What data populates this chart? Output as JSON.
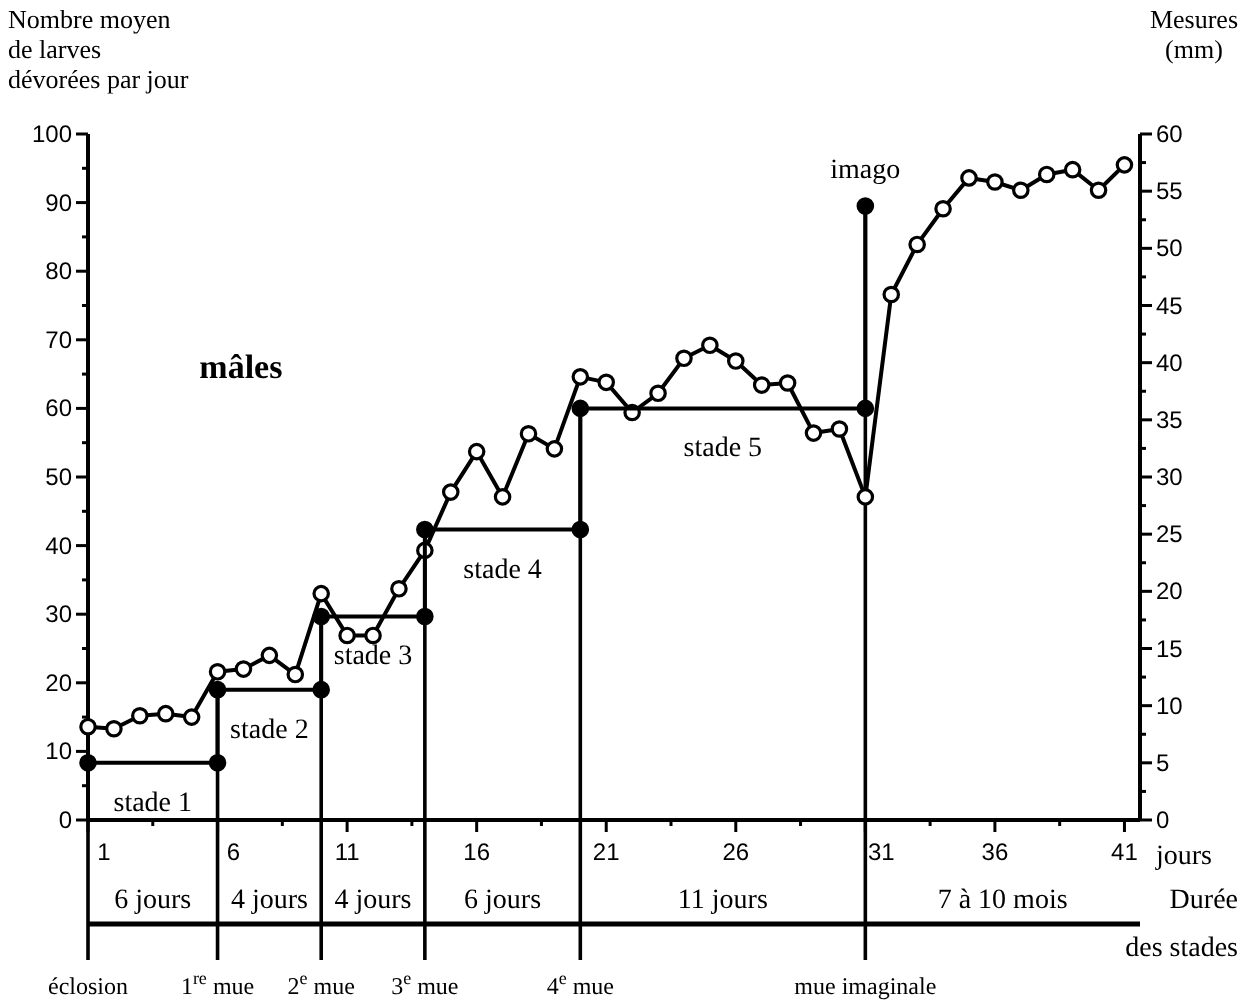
{
  "chart_data": {
    "type": "line",
    "ylabel": "Nombre moyen\nde larves\ndévorées par jour",
    "y2label": "Mesures\n(mm)",
    "xlabel": "jours",
    "xlim": [
      1,
      41.6
    ],
    "xticks": [
      1,
      {
        "value": 3.5,
        "label": null
      },
      6,
      {
        "value": 8.5,
        "label": null
      },
      11,
      {
        "value": 13.5,
        "label": null
      },
      16,
      {
        "value": 18.5,
        "label": null
      },
      21,
      {
        "value": 23.5,
        "label": null
      },
      26,
      {
        "value": 28.5,
        "label": null
      },
      31,
      {
        "value": 33.5,
        "label": null
      },
      36,
      {
        "value": 38.5,
        "label": null
      },
      41
    ],
    "ylim": [
      0,
      100
    ],
    "yticks": [
      0,
      {
        "value": 5,
        "label": null
      },
      10,
      {
        "value": 15,
        "label": null
      },
      20,
      {
        "value": 25,
        "label": null
      },
      30,
      {
        "value": 35,
        "label": null
      },
      40,
      {
        "value": 45,
        "label": null
      },
      50,
      {
        "value": 55,
        "label": null
      },
      60,
      {
        "value": 65,
        "label": null
      },
      70,
      {
        "value": 75,
        "label": null
      },
      80,
      {
        "value": 85,
        "label": null
      },
      90,
      {
        "value": 95,
        "label": null
      },
      100
    ],
    "y2lim": [
      0,
      60
    ],
    "y2ticks": [
      0,
      {
        "value": 2.5,
        "label": null
      },
      5,
      {
        "value": 7.5,
        "label": null
      },
      10,
      {
        "value": 12.5,
        "label": null
      },
      15,
      {
        "value": 17.5,
        "label": null
      },
      20,
      {
        "value": 22.5,
        "label": null
      },
      25,
      {
        "value": 27.5,
        "label": null
      },
      30,
      {
        "value": 32.5,
        "label": null
      },
      35,
      {
        "value": 37.5,
        "label": null
      },
      40,
      {
        "value": 42.5,
        "label": null
      },
      45,
      {
        "value": 47.5,
        "label": null
      },
      50,
      {
        "value": 52.5,
        "label": null
      },
      55,
      {
        "value": 57.5,
        "label": null
      },
      60
    ],
    "grid": false,
    "series": [
      {
        "color": "#000000",
        "marker": "circle",
        "x": [
          1,
          2,
          3,
          4,
          5,
          6,
          7,
          8,
          9,
          10,
          11,
          12,
          13,
          14,
          15,
          16,
          17,
          18,
          19,
          20,
          21,
          22,
          23,
          24,
          25,
          26,
          27,
          28,
          29,
          30,
          31,
          32,
          33,
          34,
          35,
          36,
          37,
          38,
          39,
          40,
          41
        ],
        "values": [
          13.6,
          13.3,
          15.2,
          15.5,
          15.0,
          21.6,
          22,
          24,
          21.2,
          33,
          26.9,
          26.9,
          33.7,
          39.3,
          47.8,
          53.7,
          47.1,
          56.3,
          54.1,
          64.6,
          63.8,
          59.4,
          62.2,
          67.3,
          69.2,
          66.9,
          63.4,
          63.7,
          56.4,
          57.0,
          47.1,
          76.6,
          83.9,
          89.1,
          93.6,
          93.0,
          91.8,
          94.1,
          94.8,
          91.8,
          95.5
        ]
      },
      {
        "color": "#000000",
        "marker": "circle",
        "axis": "y2",
        "x": [
          1,
          6,
          6,
          10,
          10,
          14,
          14,
          20,
          20,
          31,
          31
        ],
        "values": [
          5,
          5,
          11.4,
          11.4,
          17.8,
          17.8,
          25.4,
          25.4,
          36,
          36,
          53.7
        ]
      }
    ],
    "ref_lines": [
      {
        "axis": "x",
        "value": 1,
        "label": "éclosion"
      },
      {
        "axis": "x",
        "value": 6,
        "label": "1$^{re}$ mue"
      },
      {
        "axis": "x",
        "value": 10,
        "label": "2$^{e}$ mue"
      },
      {
        "axis": "x",
        "value": 14,
        "label": "3$^{e}$ mue"
      },
      {
        "axis": "x",
        "value": 20,
        "label": "4$^{e}$ mue"
      },
      {
        "axis": "x",
        "value": 31,
        "label": "mue imaginale"
      }
    ],
    "annotations": [
      "mâles",
      "stade 1",
      "stade 2",
      "stade 3",
      "stade 4",
      "stade 5",
      "imago",
      "6 jours",
      "4 jours",
      "4 jours",
      "6 jours",
      "11 jours",
      "7 à 10 mois",
      "Durée\ndes stades"
    ]
  }
}
